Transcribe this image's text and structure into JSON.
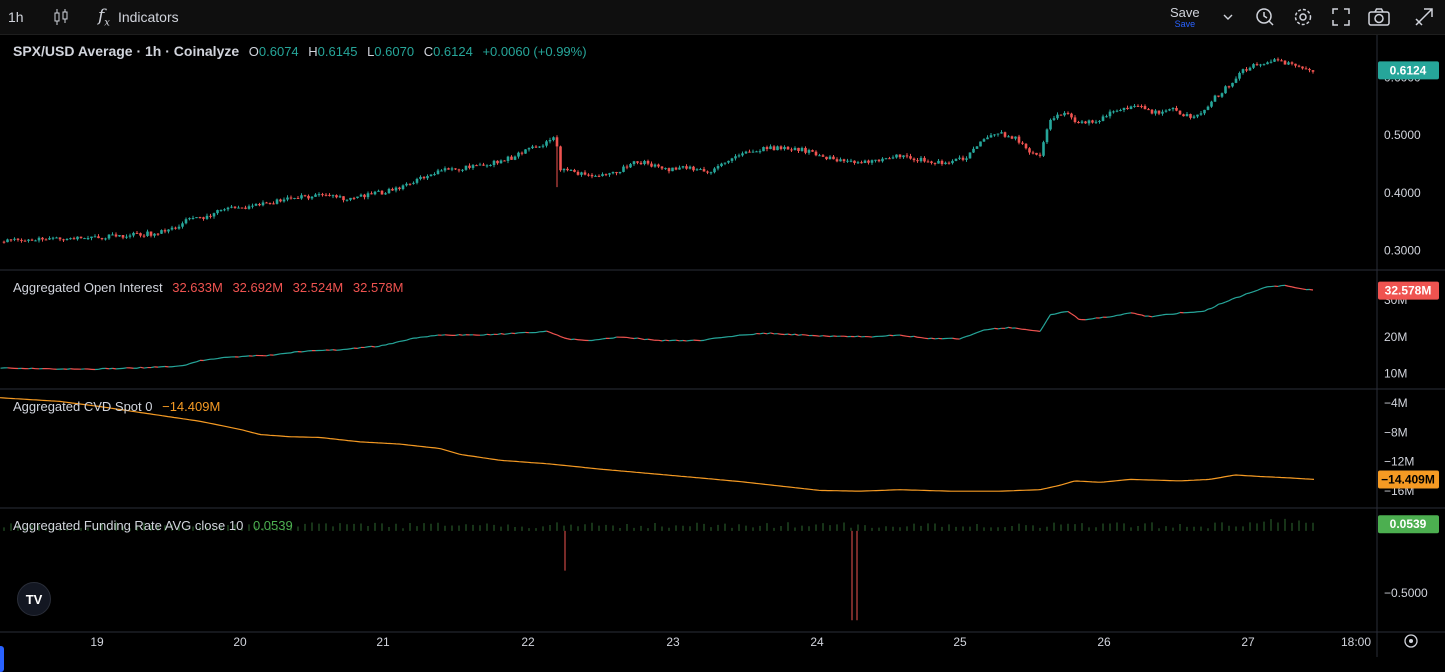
{
  "toolbar": {
    "interval": "1h",
    "indicators_label": "Indicators",
    "save_label": "Save",
    "save_sub": "Save"
  },
  "colors": {
    "up": "#26a69a",
    "down": "#ef5350",
    "cvd": "#f59a23",
    "funding": "#4caf50",
    "axis_text": "#d1d4dc",
    "pane_border": "#2a2e39"
  },
  "legends": {
    "price": {
      "title": "SPX/USD Average · 1h · Coinalyze",
      "o_label": "O",
      "o": "0.6074",
      "h_label": "H",
      "h": "0.6145",
      "l_label": "L",
      "l": "0.6070",
      "c_label": "C",
      "c": "0.6124",
      "change": "+0.0060 (+0.99%)"
    },
    "oi": {
      "title": "Aggregated Open Interest",
      "v1": "32.633M",
      "v2": "32.692M",
      "v3": "32.524M",
      "v4": "32.578M"
    },
    "cvd": {
      "title": "Aggregated CVD Spot 0",
      "value": "−14.409M"
    },
    "funding": {
      "title": "Aggregated Funding Rate AVG close 10",
      "value": "0.0539"
    }
  },
  "badges": {
    "price": "0.6124",
    "oi": "32.578M",
    "cvd": "−14.409M",
    "funding": "0.0539"
  },
  "logo_text": "TV",
  "chart_data": [
    {
      "type": "candlestick",
      "name": "price",
      "ylim": [
        0.28,
        0.66
      ],
      "y_ticks": [
        "0.3000",
        "0.4000",
        "0.5000",
        "0.6000"
      ],
      "x_ticks": [
        "19",
        "20",
        "21",
        "22",
        "23",
        "24",
        "25",
        "26",
        "27",
        "18:00"
      ],
      "anchors": [
        [
          0,
          0.315
        ],
        [
          25,
          0.318
        ],
        [
          55,
          0.322
        ],
        [
          90,
          0.322
        ],
        [
          120,
          0.325
        ],
        [
          140,
          0.328
        ],
        [
          155,
          0.33
        ],
        [
          170,
          0.335
        ],
        [
          182,
          0.345
        ],
        [
          192,
          0.36
        ],
        [
          205,
          0.355
        ],
        [
          220,
          0.37
        ],
        [
          245,
          0.375
        ],
        [
          265,
          0.38
        ],
        [
          285,
          0.39
        ],
        [
          305,
          0.393
        ],
        [
          325,
          0.395
        ],
        [
          345,
          0.39
        ],
        [
          365,
          0.395
        ],
        [
          385,
          0.402
        ],
        [
          400,
          0.41
        ],
        [
          415,
          0.42
        ],
        [
          430,
          0.435
        ],
        [
          450,
          0.44
        ],
        [
          470,
          0.445
        ],
        [
          490,
          0.45
        ],
        [
          510,
          0.46
        ],
        [
          530,
          0.475
        ],
        [
          548,
          0.49
        ],
        [
          556,
          0.495
        ],
        [
          560,
          0.44
        ],
        [
          575,
          0.435
        ],
        [
          595,
          0.43
        ],
        [
          615,
          0.435
        ],
        [
          635,
          0.455
        ],
        [
          650,
          0.45
        ],
        [
          670,
          0.44
        ],
        [
          690,
          0.445
        ],
        [
          705,
          0.435
        ],
        [
          720,
          0.445
        ],
        [
          740,
          0.47
        ],
        [
          760,
          0.475
        ],
        [
          785,
          0.48
        ],
        [
          800,
          0.475
        ],
        [
          820,
          0.465
        ],
        [
          845,
          0.455
        ],
        [
          865,
          0.452
        ],
        [
          885,
          0.46
        ],
        [
          905,
          0.465
        ],
        [
          925,
          0.455
        ],
        [
          945,
          0.45
        ],
        [
          965,
          0.46
        ],
        [
          980,
          0.49
        ],
        [
          995,
          0.505
        ],
        [
          1015,
          0.495
        ],
        [
          1030,
          0.47
        ],
        [
          1040,
          0.465
        ],
        [
          1050,
          0.53
        ],
        [
          1065,
          0.54
        ],
        [
          1080,
          0.52
        ],
        [
          1100,
          0.525
        ],
        [
          1115,
          0.545
        ],
        [
          1135,
          0.55
        ],
        [
          1155,
          0.54
        ],
        [
          1175,
          0.545
        ],
        [
          1190,
          0.53
        ],
        [
          1205,
          0.545
        ],
        [
          1215,
          0.565
        ],
        [
          1230,
          0.59
        ],
        [
          1245,
          0.615
        ],
        [
          1260,
          0.625
        ],
        [
          1275,
          0.63
        ],
        [
          1290,
          0.625
        ],
        [
          1300,
          0.62
        ],
        [
          1315,
          0.6124
        ]
      ]
    },
    {
      "type": "line",
      "name": "open interest",
      "ylim": [
        8,
        36
      ],
      "y_ticks": [
        "10M",
        "20M",
        "30M"
      ],
      "anchors": [
        [
          0,
          11.5
        ],
        [
          90,
          11.2
        ],
        [
          130,
          11.5
        ],
        [
          180,
          12
        ],
        [
          200,
          13.5
        ],
        [
          230,
          14.5
        ],
        [
          270,
          15
        ],
        [
          300,
          16
        ],
        [
          340,
          16.5
        ],
        [
          380,
          17.5
        ],
        [
          420,
          20
        ],
        [
          445,
          20.5
        ],
        [
          480,
          20.5
        ],
        [
          520,
          21
        ],
        [
          548,
          21.5
        ],
        [
          565,
          19.5
        ],
        [
          590,
          19
        ],
        [
          620,
          20
        ],
        [
          660,
          19
        ],
        [
          700,
          19
        ],
        [
          740,
          20.5
        ],
        [
          770,
          21
        ],
        [
          800,
          20.5
        ],
        [
          830,
          20.2
        ],
        [
          870,
          20
        ],
        [
          900,
          20.5
        ],
        [
          930,
          19.5
        ],
        [
          960,
          19.5
        ],
        [
          985,
          22
        ],
        [
          1010,
          22.5
        ],
        [
          1040,
          21.5
        ],
        [
          1050,
          26
        ],
        [
          1068,
          27
        ],
        [
          1080,
          24.5
        ],
        [
          1110,
          25.5
        ],
        [
          1130,
          26.5
        ],
        [
          1150,
          25.5
        ],
        [
          1180,
          26.5
        ],
        [
          1205,
          27
        ],
        [
          1220,
          29
        ],
        [
          1245,
          31.5
        ],
        [
          1265,
          33.5
        ],
        [
          1285,
          34
        ],
        [
          1300,
          33.2
        ],
        [
          1315,
          32.578
        ]
      ]
    },
    {
      "type": "line",
      "name": "cvd",
      "ylim": [
        -17.2,
        -3.2
      ],
      "y_ticks": [
        "−4M",
        "−8M",
        "−12M",
        "−16M"
      ],
      "anchors": [
        [
          0,
          -3.3
        ],
        [
          60,
          -3.8
        ],
        [
          100,
          -4.5
        ],
        [
          150,
          -5.5
        ],
        [
          200,
          -6.5
        ],
        [
          240,
          -7.6
        ],
        [
          260,
          -8.3
        ],
        [
          290,
          -8.6
        ],
        [
          320,
          -8.7
        ],
        [
          360,
          -9.3
        ],
        [
          400,
          -9.6
        ],
        [
          440,
          -10.2
        ],
        [
          460,
          -11
        ],
        [
          500,
          -11.8
        ],
        [
          550,
          -12.3
        ],
        [
          600,
          -13
        ],
        [
          650,
          -13.6
        ],
        [
          700,
          -14.2
        ],
        [
          740,
          -14.7
        ],
        [
          780,
          -15.3
        ],
        [
          820,
          -15.9
        ],
        [
          860,
          -16
        ],
        [
          900,
          -15.8
        ],
        [
          950,
          -16
        ],
        [
          1000,
          -16
        ],
        [
          1040,
          -15.8
        ],
        [
          1060,
          -15.2
        ],
        [
          1075,
          -14.6
        ],
        [
          1100,
          -14.8
        ],
        [
          1130,
          -14.4
        ],
        [
          1180,
          -14.6
        ],
        [
          1210,
          -14.4
        ],
        [
          1235,
          -13.8
        ],
        [
          1260,
          -14
        ],
        [
          1290,
          -14.2
        ],
        [
          1315,
          -14.409
        ]
      ]
    },
    {
      "type": "bar",
      "name": "funding",
      "ylim": [
        -0.75,
        0.12
      ],
      "y_ticks": [
        "−0.5000"
      ],
      "spikes": [
        [
          565,
          -0.32
        ],
        [
          852,
          -0.72
        ],
        [
          857,
          -0.72
        ]
      ],
      "last": 0.0539
    }
  ]
}
